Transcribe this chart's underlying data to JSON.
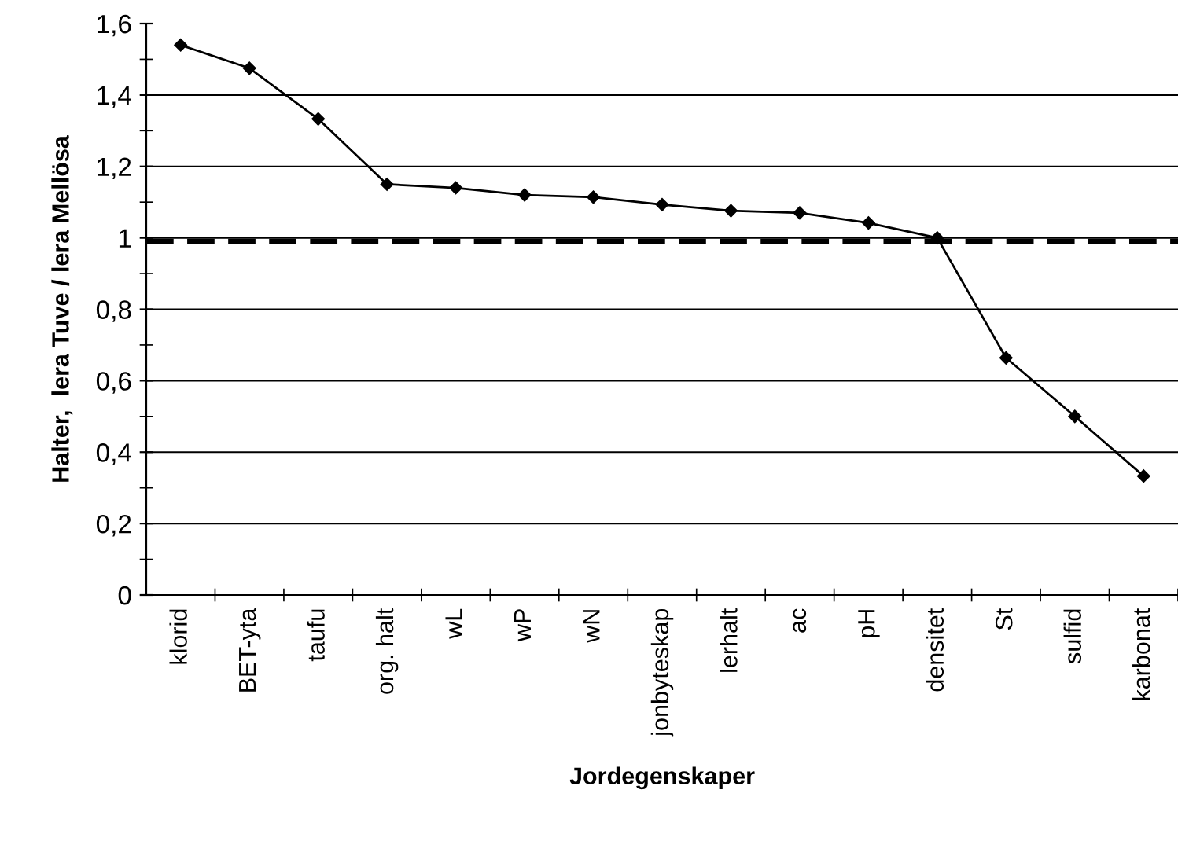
{
  "chart_data": {
    "type": "line",
    "xlabel": "Jordegenskaper",
    "ylabel": "Halter,  lera Tuve / lera Mellösa",
    "categories": [
      "klorid",
      "BET-yta",
      "taufu",
      "org. halt",
      "wL",
      "wP",
      "wN",
      "jonbyteskap",
      "lerhalt",
      "ac",
      "pH",
      "densitet",
      "St",
      "sulfid",
      "karbonat"
    ],
    "series": [
      {
        "color": "#000000",
        "values": [
          1.54,
          1.475,
          1.333,
          1.15,
          1.14,
          1.12,
          1.114,
          1.093,
          1.076,
          1.07,
          1.042,
          1.0,
          0.664,
          0.5,
          0.333
        ]
      }
    ],
    "ylim": [
      0,
      1.6
    ],
    "yticks": [
      {
        "value": 0,
        "label": "0"
      },
      {
        "value": 0.2,
        "label": "0,2"
      },
      {
        "value": 0.4,
        "label": "0,4"
      },
      {
        "value": 0.6,
        "label": "0,6"
      },
      {
        "value": 0.8,
        "label": "0,8"
      },
      {
        "value": 1,
        "label": "1"
      },
      {
        "value": 1.2,
        "label": "1,2"
      },
      {
        "value": 1.4,
        "label": "1,4"
      },
      {
        "value": 1.6,
        "label": "1,6"
      }
    ],
    "ref_lines": [
      {
        "axis": "y",
        "value": 0.99,
        "label": null,
        "color": "#000000",
        "line_style": "dashed"
      }
    ],
    "grid": "y",
    "marker": "diamond",
    "line_style": "solid",
    "legend": false
  }
}
